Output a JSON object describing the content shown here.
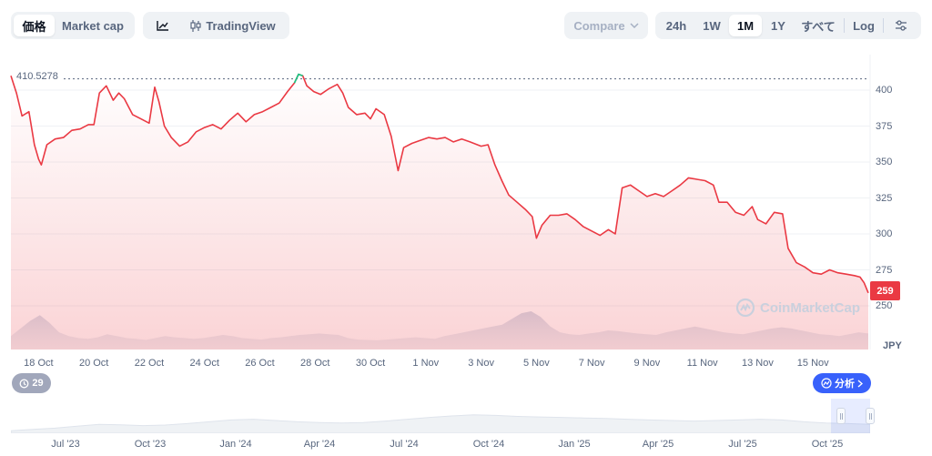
{
  "toolbar": {
    "view_tabs": [
      "価格",
      "Market cap"
    ],
    "view_active": "価格",
    "chart_style": {
      "line_icon": "line-chart-icon",
      "tradingview_label": "TradingView",
      "tradingview_icon": "candlestick-icon"
    },
    "compare_label": "Compare",
    "ranges": [
      "24h",
      "1W",
      "1M",
      "1Y",
      "すべて"
    ],
    "range_active": "1M",
    "log_label": "Log",
    "settings_icon": "sliders-icon"
  },
  "chart_data": {
    "type": "area",
    "title": "",
    "high_label": "410.5278",
    "last_price_label": "259",
    "currency": "JPY",
    "watermark": "CoinMarketCap",
    "ylim": [
      250,
      415
    ],
    "yticks": [
      400,
      375,
      350,
      325,
      300,
      275,
      250
    ],
    "xlim": [
      0,
      31
    ],
    "x_tick_labels": [
      {
        "x": 1,
        "label": "18 Oct"
      },
      {
        "x": 3,
        "label": "20 Oct"
      },
      {
        "x": 5,
        "label": "22 Oct"
      },
      {
        "x": 7,
        "label": "24 Oct"
      },
      {
        "x": 9,
        "label": "26 Oct"
      },
      {
        "x": 11,
        "label": "28 Oct"
      },
      {
        "x": 13,
        "label": "30 Oct"
      },
      {
        "x": 15,
        "label": "1 Nov"
      },
      {
        "x": 17,
        "label": "3 Nov"
      },
      {
        "x": 19,
        "label": "5 Nov"
      },
      {
        "x": 21,
        "label": "7 Nov"
      },
      {
        "x": 23,
        "label": "9 Nov"
      },
      {
        "x": 25,
        "label": "11 Nov"
      },
      {
        "x": 27,
        "label": "13 Nov"
      },
      {
        "x": 29,
        "label": "15 Nov"
      }
    ],
    "series": [
      {
        "line_color": "#ea3943",
        "high_color": "#16c784",
        "points": [
          [
            0.0,
            410
          ],
          [
            0.2,
            398
          ],
          [
            0.4,
            382
          ],
          [
            0.65,
            385
          ],
          [
            0.85,
            362
          ],
          [
            1.0,
            352
          ],
          [
            1.1,
            348
          ],
          [
            1.3,
            362
          ],
          [
            1.6,
            366
          ],
          [
            1.9,
            367
          ],
          [
            2.2,
            372
          ],
          [
            2.5,
            373
          ],
          [
            2.8,
            376
          ],
          [
            3.0,
            376
          ],
          [
            3.2,
            398
          ],
          [
            3.45,
            403
          ],
          [
            3.7,
            393
          ],
          [
            3.9,
            398
          ],
          [
            4.1,
            394
          ],
          [
            4.4,
            383
          ],
          [
            4.7,
            380
          ],
          [
            5.0,
            377
          ],
          [
            5.2,
            402
          ],
          [
            5.35,
            392
          ],
          [
            5.55,
            375
          ],
          [
            5.8,
            367
          ],
          [
            6.1,
            361
          ],
          [
            6.4,
            364
          ],
          [
            6.7,
            371
          ],
          [
            7.0,
            374
          ],
          [
            7.3,
            376
          ],
          [
            7.6,
            373
          ],
          [
            7.9,
            379
          ],
          [
            8.2,
            384
          ],
          [
            8.5,
            378
          ],
          [
            8.8,
            383
          ],
          [
            9.1,
            385
          ],
          [
            9.4,
            388
          ],
          [
            9.7,
            391
          ],
          [
            10.0,
            399
          ],
          [
            10.25,
            405
          ],
          [
            10.4,
            411
          ],
          [
            10.55,
            410
          ],
          [
            10.7,
            403
          ],
          [
            10.95,
            399
          ],
          [
            11.2,
            397
          ],
          [
            11.5,
            401
          ],
          [
            11.8,
            404
          ],
          [
            12.0,
            398
          ],
          [
            12.2,
            388
          ],
          [
            12.5,
            383
          ],
          [
            12.8,
            384
          ],
          [
            13.0,
            380
          ],
          [
            13.2,
            387
          ],
          [
            13.5,
            383
          ],
          [
            13.75,
            368
          ],
          [
            14.0,
            344
          ],
          [
            14.2,
            360
          ],
          [
            14.5,
            363
          ],
          [
            14.8,
            365
          ],
          [
            15.1,
            367
          ],
          [
            15.4,
            366
          ],
          [
            15.7,
            367
          ],
          [
            16.0,
            364
          ],
          [
            16.3,
            366
          ],
          [
            16.6,
            364
          ],
          [
            17.0,
            361
          ],
          [
            17.25,
            362
          ],
          [
            17.5,
            348
          ],
          [
            17.75,
            337
          ],
          [
            18.0,
            327
          ],
          [
            18.3,
            322
          ],
          [
            18.6,
            317
          ],
          [
            18.85,
            312
          ],
          [
            19.0,
            297
          ],
          [
            19.2,
            306
          ],
          [
            19.5,
            313
          ],
          [
            19.8,
            313
          ],
          [
            20.1,
            314
          ],
          [
            20.4,
            310
          ],
          [
            20.7,
            305
          ],
          [
            21.0,
            302
          ],
          [
            21.3,
            299
          ],
          [
            21.6,
            303
          ],
          [
            21.85,
            300
          ],
          [
            22.1,
            332
          ],
          [
            22.4,
            334
          ],
          [
            22.7,
            330
          ],
          [
            23.0,
            326
          ],
          [
            23.3,
            328
          ],
          [
            23.6,
            326
          ],
          [
            23.9,
            330
          ],
          [
            24.2,
            334
          ],
          [
            24.5,
            339
          ],
          [
            24.8,
            338
          ],
          [
            25.1,
            337
          ],
          [
            25.4,
            334
          ],
          [
            25.6,
            322
          ],
          [
            25.9,
            322
          ],
          [
            26.2,
            315
          ],
          [
            26.5,
            313
          ],
          [
            26.8,
            319
          ],
          [
            27.0,
            310
          ],
          [
            27.3,
            307
          ],
          [
            27.6,
            315
          ],
          [
            27.9,
            314
          ],
          [
            28.1,
            290
          ],
          [
            28.4,
            280
          ],
          [
            28.7,
            277
          ],
          [
            29.0,
            273
          ],
          [
            29.3,
            272
          ],
          [
            29.6,
            275
          ],
          [
            29.9,
            273
          ],
          [
            30.2,
            272
          ],
          [
            30.5,
            271
          ],
          [
            30.7,
            270
          ],
          [
            30.85,
            266
          ],
          [
            31.0,
            259
          ]
        ]
      }
    ],
    "volume_relative": [
      0.35,
      0.55,
      0.75,
      0.9,
      0.7,
      0.45,
      0.35,
      0.3,
      0.28,
      0.32,
      0.4,
      0.35,
      0.3,
      0.28,
      0.25,
      0.3,
      0.35,
      0.32,
      0.3,
      0.28,
      0.3,
      0.34,
      0.38,
      0.35,
      0.3,
      0.28,
      0.26,
      0.3,
      0.32,
      0.35,
      0.38,
      0.4,
      0.42,
      0.4,
      0.38,
      0.3,
      0.26,
      0.25,
      0.24,
      0.26,
      0.28,
      0.3,
      0.32,
      0.3,
      0.28,
      0.35,
      0.4,
      0.45,
      0.5,
      0.55,
      0.6,
      0.65,
      0.8,
      0.95,
      1.0,
      0.85,
      0.6,
      0.45,
      0.4,
      0.38,
      0.42,
      0.45,
      0.5,
      0.48,
      0.45,
      0.42,
      0.4,
      0.38,
      0.45,
      0.5,
      0.55,
      0.6,
      0.55,
      0.5,
      0.45,
      0.42,
      0.4,
      0.45,
      0.5,
      0.55,
      0.58,
      0.55,
      0.5,
      0.45,
      0.4,
      0.38,
      0.35,
      0.4,
      0.45,
      0.42
    ]
  },
  "controls": {
    "events_count": "29",
    "events_icon": "history-icon",
    "analyze_label": "分析",
    "analyze_icon": "sparkle-chart-icon"
  },
  "navigator": {
    "labels": [
      "Jul '23",
      "Oct '23",
      "Jan '24",
      "Apr '24",
      "Jul '24",
      "Oct '24",
      "Jan '25",
      "Apr '25",
      "Jul '25",
      "Oct '25"
    ],
    "relative_profile": [
      0.1,
      0.15,
      0.2,
      0.28,
      0.35,
      0.33,
      0.3,
      0.32,
      0.38,
      0.45,
      0.52,
      0.55,
      0.5,
      0.45,
      0.42,
      0.4,
      0.42,
      0.48,
      0.55,
      0.62,
      0.68,
      0.72,
      0.7,
      0.66,
      0.64,
      0.62,
      0.6,
      0.58,
      0.55,
      0.52,
      0.5,
      0.48,
      0.5,
      0.52,
      0.55,
      0.52,
      0.45,
      0.4,
      0.38,
      0.35
    ]
  }
}
